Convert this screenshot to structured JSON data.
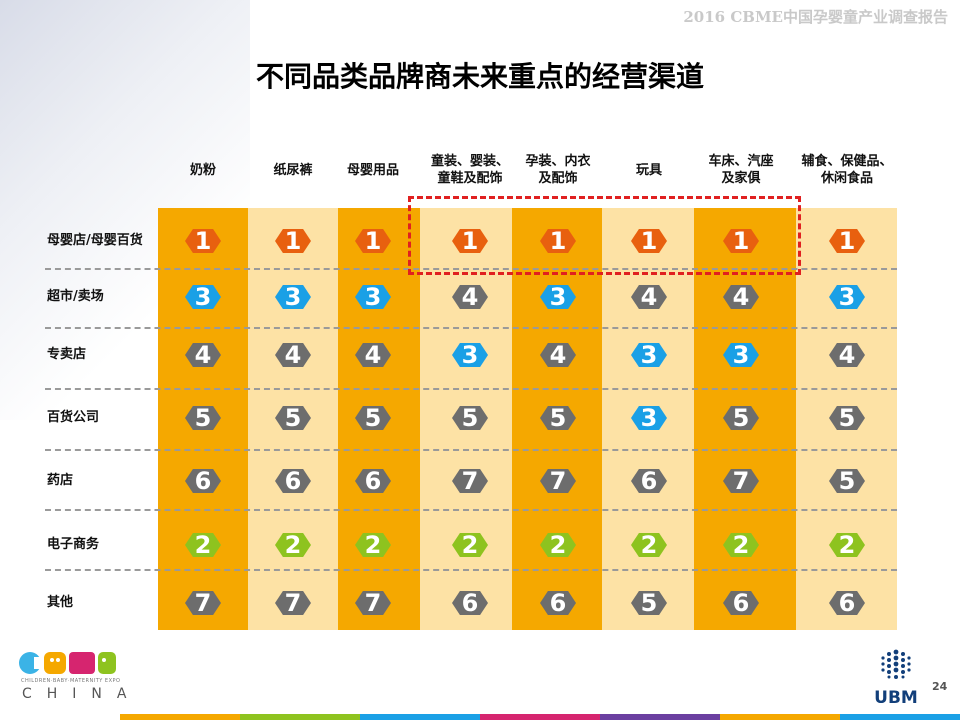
{
  "header_text": "2016 CBME中国孕婴童产业调查报告",
  "title": "不同品类品牌商未来重点的经营渠道",
  "columns": [
    "奶粉",
    "纸尿裤",
    "母婴用品",
    "童装、婴装、\n童鞋及配饰",
    "孕装、内衣\n及配饰",
    "玩具",
    "车床、汽座\n及家俱",
    "辅食、保健品、\n休闲食品"
  ],
  "rows": [
    {
      "label": "母婴店/母婴百货",
      "ranks": [
        "1",
        "1",
        "1",
        "1",
        "1",
        "1",
        "1",
        "1"
      ]
    },
    {
      "label": "超市/卖场",
      "ranks": [
        "3",
        "3",
        "3",
        "4",
        "3",
        "4",
        "4",
        "3"
      ]
    },
    {
      "label": "专卖店",
      "ranks": [
        "4",
        "4",
        "4",
        "3",
        "4",
        "3",
        "3",
        "4"
      ]
    },
    {
      "label": "百货公司",
      "ranks": [
        "5",
        "5",
        "5",
        "5",
        "5",
        "3",
        "5",
        "5"
      ]
    },
    {
      "label": "药店",
      "ranks": [
        "6",
        "6",
        "6",
        "7",
        "7",
        "6",
        "7",
        "5"
      ]
    },
    {
      "label": "电子商务",
      "ranks": [
        "2",
        "2",
        "2",
        "2",
        "2",
        "2",
        "2",
        "2"
      ]
    },
    {
      "label": "其他",
      "ranks": [
        "7",
        "7",
        "7",
        "6",
        "6",
        "5",
        "6",
        "6"
      ]
    }
  ],
  "colors": {
    "band_dark": "#f5a800",
    "band_light": "#fde2a5",
    "rank_1": "#e8600f",
    "rank_2": "#8ec31f",
    "rank_3": "#1aa0e6",
    "rank_other": "#6d6d6d",
    "highlight": "#e02020"
  },
  "logos": {
    "cbme": "CBME",
    "cbme_sub": "CHILDREN·BABY·MATERNITY EXPO",
    "cbme_country": "CHINA",
    "ubm": "UBM"
  },
  "page_number": "24"
}
